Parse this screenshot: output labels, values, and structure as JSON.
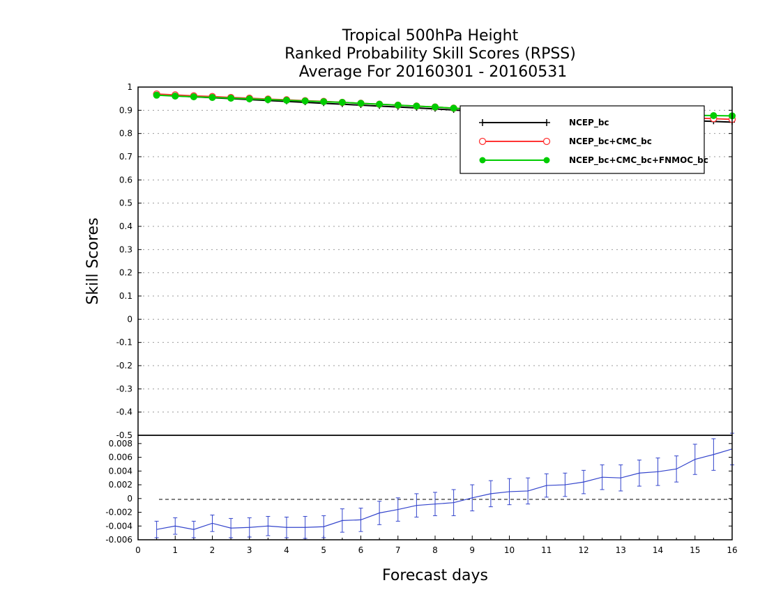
{
  "chart_data": [
    {
      "type": "line",
      "title": [
        "Tropical 500hPa Height",
        "Ranked Probability Skill Scores (RPSS)",
        "Average For 20160301 - 20160531"
      ],
      "ylabel": "Skill Scores",
      "xlim": [
        0,
        16
      ],
      "ylim": [
        -0.5,
        1.0
      ],
      "y_ticks": [
        "1",
        "0.9",
        "0.8",
        "0.7",
        "0.6",
        "0.5",
        "0.4",
        "0.3",
        "0.2",
        "0.1",
        "0",
        "-0.1",
        "-0.2",
        "-0.3",
        "-0.4",
        "-0.5"
      ],
      "grid": "horizontal dotted",
      "legend_position": "top-right",
      "x": [
        0.5,
        1,
        1.5,
        2,
        2.5,
        3,
        3.5,
        4,
        4.5,
        5,
        5.5,
        6,
        6.5,
        7,
        7.5,
        8,
        8.5,
        9,
        9.5,
        10,
        10.5,
        11,
        11.5,
        12,
        12.5,
        13,
        13.5,
        14,
        14.5,
        15,
        15.5,
        16
      ],
      "series": [
        {
          "name": "NCEP_bc",
          "color": "#000000",
          "marker": "plus",
          "values": [
            0.967,
            0.962,
            0.958,
            0.954,
            0.95,
            0.946,
            0.942,
            0.938,
            0.934,
            0.93,
            0.926,
            0.922,
            0.918,
            0.914,
            0.91,
            0.906,
            0.901,
            0.897,
            0.893,
            0.889,
            0.885,
            0.881,
            0.877,
            0.874,
            0.87,
            0.867,
            0.864,
            0.861,
            0.858,
            0.855,
            0.852,
            0.849
          ]
        },
        {
          "name": "NCEP_bc+CMC_bc",
          "color": "#ff3333",
          "marker": "open-circle",
          "values": [
            0.97,
            0.966,
            0.962,
            0.959,
            0.955,
            0.952,
            0.948,
            0.945,
            0.941,
            0.938,
            0.934,
            0.93,
            0.926,
            0.922,
            0.918,
            0.914,
            0.909,
            0.905,
            0.901,
            0.897,
            0.894,
            0.89,
            0.887,
            0.884,
            0.881,
            0.878,
            0.875,
            0.872,
            0.869,
            0.866,
            0.864,
            0.861
          ]
        },
        {
          "name": "NCEP_bc+CMC_bc+FNMOC_bc",
          "color": "#00cc00",
          "marker": "filled-circle",
          "values": [
            0.965,
            0.961,
            0.958,
            0.955,
            0.952,
            0.949,
            0.946,
            0.943,
            0.94,
            0.937,
            0.934,
            0.93,
            0.926,
            0.922,
            0.918,
            0.914,
            0.909,
            0.905,
            0.902,
            0.899,
            0.896,
            0.893,
            0.89,
            0.888,
            0.886,
            0.884,
            0.882,
            0.88,
            0.879,
            0.878,
            0.877,
            0.876
          ]
        }
      ]
    },
    {
      "type": "line",
      "xlabel": "Forecast days",
      "xlim": [
        0,
        16
      ],
      "ylim": [
        -0.006,
        0.0092
      ],
      "x_ticks": [
        "0",
        "1",
        "2",
        "3",
        "4",
        "5",
        "6",
        "7",
        "8",
        "9",
        "10",
        "11",
        "12",
        "13",
        "14",
        "15",
        "16"
      ],
      "y_ticks": [
        "0.008",
        "0.006",
        "0.004",
        "0.002",
        "0",
        "-0.002",
        "-0.004",
        "-0.006"
      ],
      "zero_line": "dashed",
      "x": [
        0.5,
        1,
        1.5,
        2,
        2.5,
        3,
        3.5,
        4,
        4.5,
        5,
        5.5,
        6,
        6.5,
        7,
        7.5,
        8,
        8.5,
        9,
        9.5,
        10,
        10.5,
        11,
        11.5,
        12,
        12.5,
        13,
        13.5,
        14,
        14.5,
        15,
        15.5,
        16
      ],
      "series": [
        {
          "color": "#3344cc",
          "values": [
            -0.0045,
            -0.004,
            -0.0045,
            -0.0036,
            -0.0043,
            -0.0042,
            -0.004,
            -0.0042,
            -0.0042,
            -0.0041,
            -0.0032,
            -0.0031,
            -0.0021,
            -0.0016,
            -0.001,
            -0.0008,
            -0.0006,
            0.0001,
            0.0007,
            0.001,
            0.0011,
            0.0019,
            0.002,
            0.0024,
            0.0031,
            0.003,
            0.0037,
            0.0039,
            0.0043,
            0.0057,
            0.0064,
            0.0072
          ],
          "error": [
            0.0012,
            0.0012,
            0.0012,
            0.0012,
            0.0014,
            0.0014,
            0.0014,
            0.0015,
            0.0016,
            0.0016,
            0.0017,
            0.0017,
            0.0017,
            0.0017,
            0.0017,
            0.0017,
            0.0019,
            0.0019,
            0.0019,
            0.0019,
            0.0019,
            0.0017,
            0.0017,
            0.0017,
            0.0018,
            0.0019,
            0.0019,
            0.002,
            0.0019,
            0.0022,
            0.0023,
            0.0023
          ]
        }
      ]
    }
  ]
}
